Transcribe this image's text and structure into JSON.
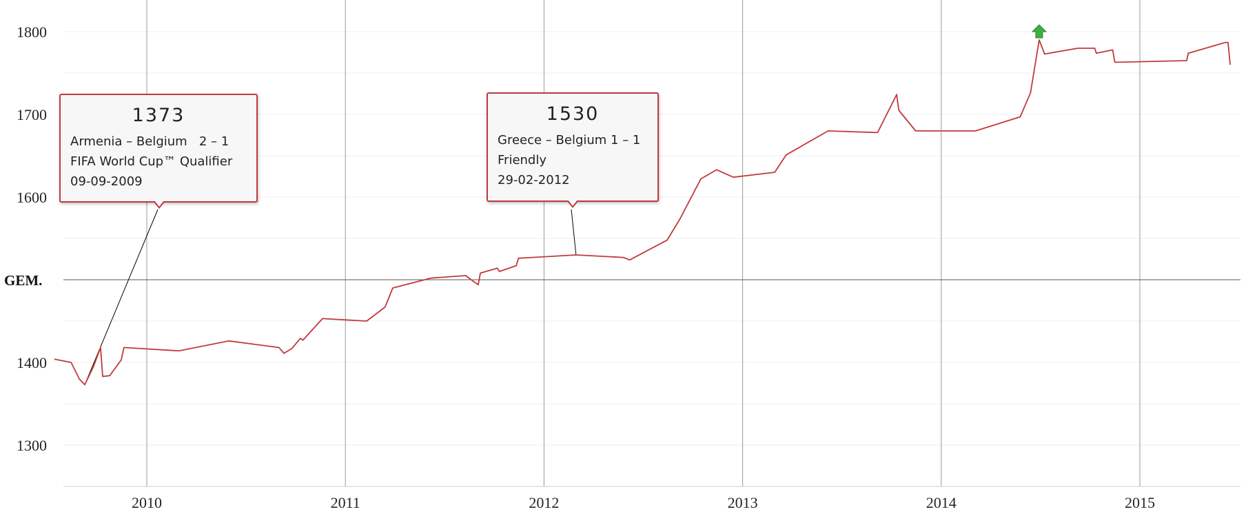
{
  "chart_data": {
    "type": "line",
    "title": "",
    "xlabel": "",
    "ylabel": "",
    "ylim": [
      1250,
      1800
    ],
    "xlim": [
      "2009-07-15",
      "2015-07-15"
    ],
    "y_ticks": [
      1300,
      1400,
      1600,
      1700,
      1800
    ],
    "x_ticks": [
      "2010",
      "2011",
      "2012",
      "2013",
      "2014",
      "2015"
    ],
    "average": {
      "label": "GEM.",
      "value": 1500
    },
    "grid": true,
    "colors": {
      "line": "#c0393b",
      "grid": "#ececec",
      "vgrid": "#999999",
      "avg_line": "#555555",
      "marker": "#3cb043"
    },
    "series": [
      {
        "points": [
          [
            "2009-07-15",
            1404
          ],
          [
            "2009-08-15",
            1400
          ],
          [
            "2009-08-30",
            1380
          ],
          [
            "2009-09-09",
            1373
          ],
          [
            "2009-09-25",
            1395
          ],
          [
            "2009-10-08",
            1418
          ],
          [
            "2009-10-12",
            1383
          ],
          [
            "2009-10-25",
            1384
          ],
          [
            "2009-11-15",
            1403
          ],
          [
            "2009-11-20",
            1418
          ],
          [
            "2010-03-01",
            1414
          ],
          [
            "2010-06-01",
            1426
          ],
          [
            "2010-09-01",
            1418
          ],
          [
            "2010-09-10",
            1411
          ],
          [
            "2010-09-25",
            1417
          ],
          [
            "2010-10-10",
            1429
          ],
          [
            "2010-10-15",
            1427
          ],
          [
            "2010-11-20",
            1453
          ],
          [
            "2011-02-09",
            1450
          ],
          [
            "2011-03-15",
            1467
          ],
          [
            "2011-03-29",
            1490
          ],
          [
            "2011-06-07",
            1502
          ],
          [
            "2011-08-10",
            1505
          ],
          [
            "2011-08-20",
            1500
          ],
          [
            "2011-09-02",
            1494
          ],
          [
            "2011-09-06",
            1508
          ],
          [
            "2011-10-07",
            1514
          ],
          [
            "2011-10-11",
            1510
          ],
          [
            "2011-11-11",
            1517
          ],
          [
            "2011-11-15",
            1526
          ],
          [
            "2012-02-29",
            1530
          ],
          [
            "2012-05-26",
            1527
          ],
          [
            "2012-06-07",
            1524
          ],
          [
            "2012-08-15",
            1548
          ],
          [
            "2012-09-07",
            1573
          ],
          [
            "2012-10-16",
            1622
          ],
          [
            "2012-11-14",
            1633
          ],
          [
            "2012-12-15",
            1624
          ],
          [
            "2013-03-01",
            1630
          ],
          [
            "2013-03-22",
            1651
          ],
          [
            "2013-06-07",
            1680
          ],
          [
            "2013-09-06",
            1678
          ],
          [
            "2013-10-11",
            1724
          ],
          [
            "2013-10-15",
            1705
          ],
          [
            "2013-11-15",
            1680
          ],
          [
            "2014-03-05",
            1680
          ],
          [
            "2014-05-26",
            1697
          ],
          [
            "2014-06-14",
            1726
          ],
          [
            "2014-06-30",
            1790
          ],
          [
            "2014-07-10",
            1773
          ],
          [
            "2014-09-09",
            1780
          ],
          [
            "2014-10-10",
            1780
          ],
          [
            "2014-10-13",
            1774
          ],
          [
            "2014-11-12",
            1778
          ],
          [
            "2014-11-16",
            1763
          ],
          [
            "2015-03-28",
            1765
          ],
          [
            "2015-03-31",
            1774
          ],
          [
            "2015-06-07",
            1787
          ],
          [
            "2015-06-12",
            1787
          ],
          [
            "2015-06-16",
            1760
          ]
        ]
      }
    ],
    "annotations": [
      {
        "value": "1373",
        "lines": [
          "Armenia – Belgium   2 – 1",
          "FIFA World Cup™ Qualifier",
          "09-09-2009"
        ]
      },
      {
        "value": "1530",
        "lines": [
          "Greece – Belgium 1 – 1",
          "Friendly",
          "29-02-2012"
        ]
      }
    ],
    "peak_marker": {
      "icon": "green-up-arrow-icon",
      "date": "2014-06-30",
      "value": 1790
    }
  }
}
